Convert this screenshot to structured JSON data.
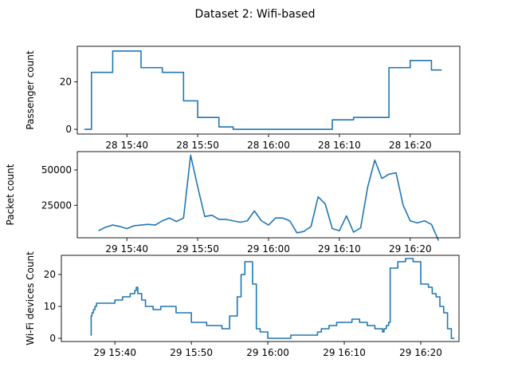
{
  "figure": {
    "title": "Dataset 2: Wifi-based"
  },
  "chart_data": [
    {
      "type": "line",
      "step": true,
      "ylabel": "Passenger count",
      "xlim": [
        "15:33",
        "16:27"
      ],
      "ylim": [
        -2,
        35
      ],
      "x_ticks": [
        {
          "t": "15:40",
          "label": "28 15:40"
        },
        {
          "t": "15:50",
          "label": "28 15:50"
        },
        {
          "t": "16:00",
          "label": "28 16:00"
        },
        {
          "t": "16:10",
          "label": "28 16:10"
        },
        {
          "t": "16:20",
          "label": "28 16:20"
        }
      ],
      "y_ticks": [
        0,
        20
      ],
      "series": [
        {
          "x": [
            "15:34",
            "15:35",
            "15:36",
            "15:37",
            "15:38",
            "15:39",
            "15:40",
            "15:41",
            "15:42",
            "15:43",
            "15:44",
            "15:45",
            "15:46",
            "15:47",
            "15:48",
            "15:49",
            "15:50",
            "15:51",
            "15:52",
            "15:53",
            "15:54",
            "15:55",
            "15:56",
            "15:57",
            "15:58",
            "15:59",
            "16:00",
            "16:01",
            "16:02",
            "16:03",
            "16:04",
            "16:05",
            "16:06",
            "16:07",
            "16:08",
            "16:09",
            "16:10",
            "16:11",
            "16:12",
            "16:13",
            "16:14",
            "16:15",
            "16:16",
            "16:17",
            "16:18",
            "16:19",
            "16:20",
            "16:21",
            "16:22",
            "16:23",
            "16:24"
          ],
          "y": [
            0,
            24,
            24,
            24,
            33,
            33,
            33,
            33,
            26,
            26,
            26,
            24,
            24,
            24,
            12,
            12,
            5,
            5,
            5,
            1,
            1,
            0,
            0,
            0,
            0,
            0,
            0,
            0,
            0,
            0,
            0,
            0,
            0,
            0,
            0,
            4,
            4,
            4,
            5,
            5,
            5,
            5,
            5,
            26,
            26,
            26,
            29,
            29,
            29,
            25,
            25
          ]
        }
      ]
    },
    {
      "type": "line",
      "ylabel": "Packet count",
      "xlim": [
        "15:33",
        "16:27"
      ],
      "ylim": [
        2000,
        63000
      ],
      "x_ticks": [
        {
          "t": "15:40",
          "label": "29 15:40"
        },
        {
          "t": "15:50",
          "label": "29 15:50"
        },
        {
          "t": "16:00",
          "label": "29 16:00"
        },
        {
          "t": "16:10",
          "label": "29 16:10"
        },
        {
          "t": "16:20",
          "label": "29 16:20"
        }
      ],
      "y_ticks": [
        25000,
        50000
      ],
      "series": [
        {
          "x": [
            "15:36",
            "15:37",
            "15:38",
            "15:39",
            "15:40",
            "15:41",
            "15:42",
            "15:43",
            "15:44",
            "15:45",
            "15:46",
            "15:47",
            "15:48",
            "15:49",
            "15:50",
            "15:51",
            "15:52",
            "15:53",
            "15:54",
            "15:55",
            "15:56",
            "15:57",
            "15:58",
            "15:59",
            "16:00",
            "16:01",
            "16:02",
            "16:03",
            "16:04",
            "16:05",
            "16:06",
            "16:07",
            "16:08",
            "16:09",
            "16:10",
            "16:11",
            "16:12",
            "16:13",
            "16:14",
            "16:15",
            "16:16",
            "16:17",
            "16:18",
            "16:19",
            "16:20",
            "16:21",
            "16:22",
            "16:23",
            "16:24"
          ],
          "y": [
            7000,
            9500,
            11000,
            10000,
            8500,
            10500,
            11000,
            11500,
            11000,
            14000,
            16000,
            13500,
            16000,
            60500,
            38000,
            17000,
            18000,
            15000,
            15000,
            14000,
            13000,
            14000,
            21000,
            14000,
            11000,
            16000,
            16000,
            14000,
            5500,
            6500,
            10000,
            31000,
            26000,
            8500,
            7000,
            17500,
            6000,
            9000,
            38000,
            57000,
            44000,
            47000,
            48000,
            25000,
            14000,
            12500,
            14000,
            11500,
            0
          ]
        }
      ]
    },
    {
      "type": "line",
      "step": true,
      "ylabel": "Wi-Fi devices Count",
      "xlim": [
        "15:33",
        "16:25"
      ],
      "ylim": [
        -1,
        26
      ],
      "x_ticks": [
        {
          "t": "15:40",
          "label": "29 15:40"
        },
        {
          "t": "15:50",
          "label": "29 15:50"
        },
        {
          "t": "16:00",
          "label": "29 16:00"
        },
        {
          "t": "16:10",
          "label": "29 16:10"
        },
        {
          "t": "16:20",
          "label": "29 16:20"
        }
      ],
      "y_ticks": [
        0,
        10,
        20
      ],
      "series": [
        {
          "x": [
            "15:36.8",
            "15:36.9",
            "15:37",
            "15:37.2",
            "15:37.4",
            "15:37.6",
            "15:38",
            "15:39",
            "15:40",
            "15:40.5",
            "15:41",
            "15:42",
            "15:42.6",
            "15:42.8",
            "15:43",
            "15:43.5",
            "15:44",
            "15:45",
            "15:46",
            "15:46.5",
            "15:47",
            "15:48",
            "15:50",
            "15:52",
            "15:53",
            "15:53.5",
            "15:54",
            "15:55",
            "15:55.2",
            "15:55.5",
            "15:55.8",
            "15:56",
            "15:56.5",
            "15:57",
            "15:58",
            "15:58.2",
            "15:58.5",
            "15:59",
            "16:00",
            "16:01",
            "16:02",
            "16:03",
            "16:04",
            "16:05",
            "16:06",
            "16:06.5",
            "16:07",
            "16:08",
            "16:09",
            "16:10",
            "16:11",
            "16:12",
            "16:13",
            "16:14",
            "16:15",
            "16:15.2",
            "16:15.5",
            "16:15.8",
            "16:16",
            "16:17",
            "16:18",
            "16:18.5",
            "16:19",
            "16:20",
            "16:21",
            "16:21.5",
            "16:22",
            "16:22.5",
            "16:23",
            "16:23.5",
            "16:24"
          ],
          "y": [
            1,
            7,
            8,
            9,
            10,
            11,
            11,
            11,
            12,
            12,
            13,
            14,
            15,
            16,
            14,
            12,
            10,
            9,
            10,
            10,
            10,
            8,
            5,
            4,
            4,
            4,
            3,
            7,
            7,
            7,
            7,
            13,
            20,
            24,
            17,
            17,
            3,
            2,
            0,
            0,
            0,
            1,
            1,
            1,
            1,
            2,
            3,
            4,
            5,
            5,
            6,
            5,
            4,
            3,
            2,
            3,
            4,
            5,
            22,
            24,
            25,
            25,
            24,
            17,
            16,
            14,
            13,
            10,
            8,
            3,
            0
          ]
        }
      ]
    }
  ]
}
